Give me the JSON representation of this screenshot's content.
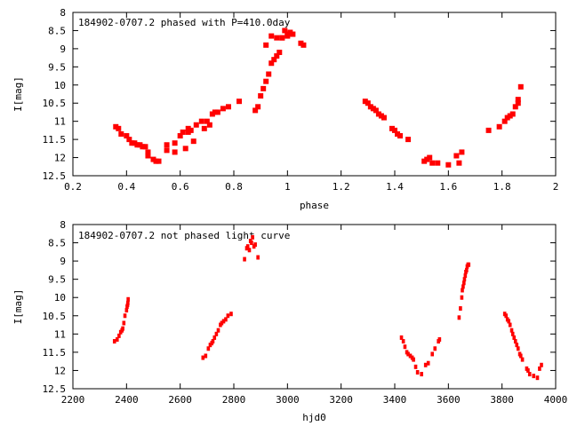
{
  "chart_data": [
    {
      "type": "scatter",
      "title": "184902-0707.2 phased with P=410.0day",
      "xlabel": "phase",
      "ylabel": "I[mag]",
      "xlim": [
        0.2,
        2
      ],
      "ylim": [
        8,
        12.5
      ],
      "y_inverted": true,
      "grid": false,
      "x_ticks": [
        "0.2",
        "0.4",
        "0.6",
        "0.8",
        "1",
        "1.2",
        "1.4",
        "1.6",
        "1.8",
        "2"
      ],
      "x_tick_values": [
        0.2,
        0.4,
        0.6,
        0.8,
        1.0,
        1.2,
        1.4,
        1.6,
        1.8,
        2.0
      ],
      "y_ticks": [
        "8",
        "8.5",
        "9",
        "9.5",
        "10",
        "10.5",
        "11",
        "11.5",
        "12",
        "12.5"
      ],
      "y_tick_values": [
        8,
        8.5,
        9,
        9.5,
        10,
        10.5,
        11,
        11.5,
        12,
        12.5
      ],
      "marker_color": "#ff0000",
      "series": [
        {
          "x": [
            0.36,
            0.37,
            0.38,
            0.4,
            0.41,
            0.42,
            0.43,
            0.44,
            0.45,
            0.46,
            0.47,
            0.48,
            0.48,
            0.5,
            0.51,
            0.52,
            0.55,
            0.55,
            0.58,
            0.58,
            0.6,
            0.61,
            0.62,
            0.63,
            0.63,
            0.64,
            0.65,
            0.66,
            0.68,
            0.69,
            0.7,
            0.71,
            0.72,
            0.73,
            0.74,
            0.76,
            0.78,
            0.82,
            0.88,
            0.89,
            0.9,
            0.91,
            0.92,
            0.93,
            0.94,
            0.95,
            0.96,
            0.97,
            0.98,
            0.99,
            1.0,
            1.01,
            1.02,
            0.92,
            0.94,
            0.96,
            0.98,
            1.0,
            1.05,
            1.06,
            1.29,
            1.3,
            1.31,
            1.32,
            1.33,
            1.34,
            1.35,
            1.36,
            1.39,
            1.4,
            1.41,
            1.42,
            1.45,
            1.51,
            1.52,
            1.53,
            1.54,
            1.56,
            1.6,
            1.63,
            1.64,
            1.65,
            1.75,
            1.79,
            1.81,
            1.82,
            1.83,
            1.84,
            1.85,
            1.86,
            1.86,
            1.87
          ],
          "y": [
            11.15,
            11.2,
            11.35,
            11.4,
            11.5,
            11.6,
            11.6,
            11.65,
            11.65,
            11.7,
            11.7,
            11.85,
            11.95,
            12.05,
            12.1,
            12.1,
            11.65,
            11.8,
            11.6,
            11.85,
            11.4,
            11.3,
            11.75,
            11.3,
            11.2,
            11.25,
            11.55,
            11.1,
            11.0,
            11.2,
            11.0,
            11.1,
            10.8,
            10.75,
            10.75,
            10.65,
            10.6,
            10.45,
            10.7,
            10.6,
            10.3,
            10.1,
            9.9,
            9.7,
            9.4,
            9.3,
            9.2,
            9.1,
            8.7,
            8.5,
            8.6,
            8.55,
            8.6,
            8.9,
            8.65,
            8.7,
            8.7,
            8.65,
            8.85,
            8.9,
            10.45,
            10.5,
            10.6,
            10.65,
            10.7,
            10.8,
            10.85,
            10.9,
            11.2,
            11.25,
            11.35,
            11.4,
            11.5,
            12.1,
            12.05,
            12.0,
            12.15,
            12.15,
            12.2,
            11.95,
            12.15,
            11.85,
            11.25,
            11.15,
            11.0,
            10.9,
            10.85,
            10.8,
            10.6,
            10.5,
            10.4,
            10.05
          ]
        }
      ]
    },
    {
      "type": "scatter",
      "title": "184902-0707.2 not phased light curve",
      "xlabel": "hjd0",
      "ylabel": "I[mag]",
      "xlim": [
        2200,
        4000
      ],
      "ylim": [
        8,
        12.5
      ],
      "y_inverted": true,
      "grid": false,
      "x_ticks": [
        "2200",
        "2400",
        "2600",
        "2800",
        "3000",
        "3200",
        "3400",
        "3600",
        "3800",
        "4000"
      ],
      "x_tick_values": [
        2200,
        2400,
        2600,
        2800,
        3000,
        3200,
        3400,
        3600,
        3800,
        4000
      ],
      "y_ticks": [
        "8",
        "8.5",
        "9",
        "9.5",
        "10",
        "10.5",
        "11",
        "11.5",
        "12",
        "12.5"
      ],
      "y_tick_values": [
        8,
        8.5,
        9,
        9.5,
        10,
        10.5,
        11,
        11.5,
        12,
        12.5
      ],
      "marker_color": "#ff0000",
      "series": [
        {
          "x": [
            2355,
            2365,
            2372,
            2378,
            2383,
            2386,
            2390,
            2394,
            2400,
            2402,
            2404,
            2405,
            2406,
            2685,
            2695,
            2705,
            2712,
            2718,
            2722,
            2728,
            2735,
            2742,
            2750,
            2755,
            2762,
            2770,
            2778,
            2790,
            2840,
            2848,
            2852,
            2858,
            2862,
            2866,
            2870,
            2875,
            2880,
            2890,
            3425,
            3432,
            3438,
            3445,
            3450,
            3458,
            3465,
            3470,
            3478,
            3485,
            3500,
            3515,
            3525,
            3540,
            3550,
            3563,
            3567,
            3640,
            3645,
            3650,
            3652,
            3655,
            3658,
            3660,
            3663,
            3665,
            3668,
            3670,
            3673,
            3676,
            3810,
            3815,
            3820,
            3825,
            3830,
            3836,
            3840,
            3845,
            3850,
            3855,
            3860,
            3866,
            3870,
            3876,
            3892,
            3897,
            3903,
            3918,
            3932,
            3940,
            3947
          ],
          "y": [
            11.2,
            11.15,
            11.05,
            10.95,
            10.9,
            10.85,
            10.7,
            10.5,
            10.35,
            10.25,
            10.2,
            10.15,
            10.05,
            11.65,
            11.6,
            11.4,
            11.3,
            11.25,
            11.2,
            11.1,
            11.0,
            10.9,
            10.75,
            10.7,
            10.65,
            10.6,
            10.5,
            10.45,
            8.95,
            8.65,
            8.6,
            8.7,
            8.45,
            8.5,
            8.35,
            8.6,
            8.55,
            8.9,
            11.1,
            11.2,
            11.35,
            11.5,
            11.55,
            11.6,
            11.65,
            11.7,
            11.9,
            12.05,
            12.1,
            11.85,
            11.8,
            11.55,
            11.4,
            11.2,
            11.15,
            10.55,
            10.3,
            10.0,
            9.8,
            9.7,
            9.6,
            9.5,
            9.4,
            9.3,
            9.25,
            9.15,
            9.1,
            9.1,
            10.45,
            10.5,
            10.6,
            10.65,
            10.75,
            10.9,
            11.0,
            11.1,
            11.2,
            11.3,
            11.4,
            11.55,
            11.6,
            11.7,
            11.95,
            12.0,
            12.1,
            12.15,
            12.2,
            11.95,
            11.85
          ]
        }
      ]
    }
  ]
}
